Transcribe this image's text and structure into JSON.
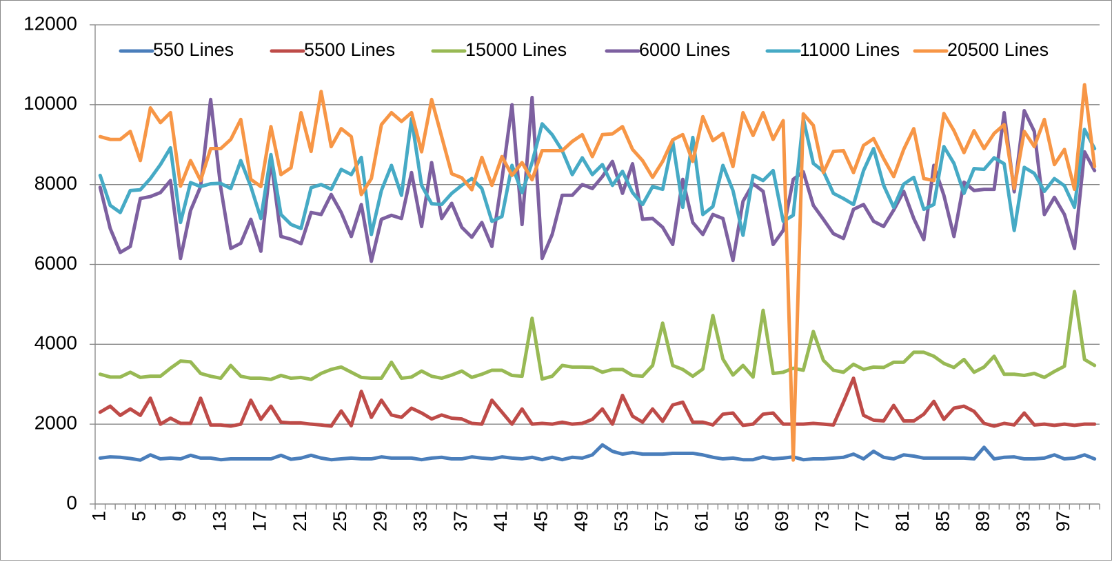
{
  "chart_data": {
    "type": "line",
    "categories": [
      1,
      null,
      null,
      null,
      5,
      null,
      null,
      null,
      9,
      null,
      null,
      null,
      13,
      null,
      null,
      null,
      17,
      null,
      null,
      null,
      21,
      null,
      null,
      null,
      25,
      null,
      null,
      null,
      29,
      null,
      null,
      null,
      33,
      null,
      null,
      null,
      37,
      null,
      null,
      null,
      41,
      null,
      null,
      null,
      45,
      null,
      null,
      null,
      49,
      null,
      null,
      null,
      53,
      null,
      null,
      null,
      57,
      null,
      null,
      null,
      61,
      null,
      null,
      null,
      65,
      null,
      null,
      null,
      69,
      null,
      null,
      null,
      73,
      null,
      null,
      null,
      77,
      null,
      null,
      null,
      81,
      null,
      null,
      null,
      85,
      null,
      null,
      null,
      89,
      null,
      null,
      null,
      93,
      null,
      null,
      null,
      97,
      null,
      null,
      null
    ],
    "ylim": [
      0,
      12000
    ],
    "yticks": [
      0,
      2000,
      4000,
      6000,
      8000,
      10000,
      12000
    ],
    "grid": true,
    "legend": "top",
    "series": [
      {
        "name": "550 Lines",
        "color": "#4a7ebb",
        "values": [
          1150,
          1180,
          1170,
          1140,
          1100,
          1230,
          1130,
          1150,
          1130,
          1220,
          1150,
          1150,
          1110,
          1130,
          1130,
          1130,
          1130,
          1130,
          1220,
          1120,
          1150,
          1220,
          1150,
          1110,
          1130,
          1150,
          1130,
          1130,
          1180,
          1150,
          1150,
          1150,
          1110,
          1150,
          1170,
          1130,
          1130,
          1180,
          1150,
          1130,
          1180,
          1150,
          1130,
          1170,
          1110,
          1170,
          1110,
          1170,
          1150,
          1230,
          1480,
          1320,
          1250,
          1290,
          1250,
          1250,
          1250,
          1270,
          1270,
          1270,
          1230,
          1170,
          1130,
          1150,
          1110,
          1110,
          1180,
          1130,
          1150,
          1180,
          1110,
          1130,
          1130,
          1150,
          1170,
          1250,
          1130,
          1320,
          1170,
          1130,
          1230,
          1200,
          1150,
          1150,
          1150,
          1150,
          1150,
          1130,
          1420,
          1130,
          1170,
          1180,
          1130,
          1130,
          1150,
          1230,
          1130,
          1150,
          1230,
          1130
        ]
      },
      {
        "name": "5500 Lines",
        "color": "#be4b48",
        "values": [
          2300,
          2450,
          2220,
          2380,
          2220,
          2650,
          2000,
          2150,
          2020,
          2020,
          2650,
          1980,
          1980,
          1950,
          2000,
          2600,
          2120,
          2450,
          2050,
          2030,
          2030,
          2000,
          1980,
          1950,
          2330,
          1960,
          2820,
          2170,
          2600,
          2230,
          2170,
          2400,
          2280,
          2130,
          2230,
          2150,
          2130,
          2020,
          2000,
          2600,
          2300,
          2000,
          2380,
          2000,
          2020,
          2000,
          2050,
          2000,
          2020,
          2120,
          2380,
          2000,
          2720,
          2200,
          2050,
          2380,
          2070,
          2480,
          2550,
          2050,
          2050,
          1980,
          2250,
          2280,
          1970,
          2000,
          2250,
          2280,
          2000,
          2000,
          2000,
          2020,
          2000,
          1980,
          2550,
          3150,
          2220,
          2100,
          2080,
          2470,
          2080,
          2080,
          2250,
          2570,
          2120,
          2400,
          2450,
          2320,
          2020,
          1950,
          2020,
          1980,
          2280,
          1980,
          2000,
          1970,
          2000,
          1970,
          2000,
          2000
        ]
      },
      {
        "name": "15000 Lines",
        "color": "#98b954",
        "values": [
          3250,
          3180,
          3180,
          3300,
          3170,
          3200,
          3200,
          3400,
          3580,
          3560,
          3270,
          3200,
          3150,
          3470,
          3200,
          3150,
          3150,
          3120,
          3220,
          3150,
          3170,
          3120,
          3270,
          3370,
          3430,
          3300,
          3170,
          3150,
          3150,
          3550,
          3150,
          3180,
          3330,
          3200,
          3150,
          3230,
          3330,
          3170,
          3250,
          3350,
          3350,
          3220,
          3200,
          4650,
          3130,
          3200,
          3470,
          3430,
          3430,
          3420,
          3300,
          3370,
          3370,
          3220,
          3200,
          3470,
          4530,
          3470,
          3370,
          3200,
          3380,
          4720,
          3630,
          3230,
          3470,
          3180,
          4850,
          3270,
          3300,
          3400,
          3350,
          4320,
          3600,
          3350,
          3300,
          3500,
          3370,
          3430,
          3420,
          3550,
          3550,
          3800,
          3800,
          3700,
          3520,
          3420,
          3620,
          3300,
          3430,
          3700,
          3250,
          3250,
          3220,
          3270,
          3170,
          3320,
          3450,
          5320,
          3620,
          3470
        ]
      },
      {
        "name": "6000 Lines",
        "color": "#7d60a0",
        "values": [
          7930,
          6900,
          6300,
          6450,
          7650,
          7700,
          7800,
          8100,
          6150,
          7350,
          7950,
          10130,
          7930,
          6400,
          6530,
          7130,
          6330,
          8630,
          6700,
          6630,
          6520,
          7300,
          7250,
          7750,
          7300,
          6700,
          7500,
          6080,
          7130,
          7230,
          7150,
          8300,
          6950,
          8550,
          7150,
          7530,
          6930,
          6680,
          7050,
          6450,
          8130,
          10000,
          7000,
          10180,
          6150,
          6750,
          7730,
          7730,
          8000,
          7900,
          8200,
          8580,
          7780,
          8520,
          7130,
          7150,
          6930,
          6500,
          8130,
          7050,
          6750,
          7250,
          7150,
          6100,
          7580,
          8020,
          7830,
          6500,
          6850,
          8130,
          8320,
          7480,
          7130,
          6770,
          6650,
          7380,
          7500,
          7080,
          6950,
          7360,
          7830,
          7150,
          6620,
          8480,
          7730,
          6700,
          8060,
          7850,
          7880,
          7880,
          9800,
          7820,
          9850,
          9330,
          7250,
          7680,
          7250,
          6400,
          8820,
          8350
        ]
      },
      {
        "name": "11000 Lines",
        "color": "#46aac5",
        "values": [
          8230,
          7480,
          7300,
          7850,
          7870,
          8150,
          8500,
          8920,
          7050,
          8050,
          7950,
          8020,
          8030,
          7900,
          8600,
          7950,
          7150,
          8750,
          7250,
          7000,
          6900,
          7920,
          8000,
          7880,
          8380,
          8250,
          8680,
          6750,
          7850,
          8480,
          7730,
          9650,
          7980,
          7520,
          7500,
          7780,
          7980,
          8150,
          7900,
          7080,
          7200,
          8480,
          7800,
          8550,
          9520,
          9250,
          8850,
          8250,
          8670,
          8250,
          8500,
          7980,
          8330,
          7800,
          7500,
          7950,
          7880,
          9080,
          7430,
          9180,
          7250,
          7450,
          8480,
          7850,
          6730,
          8230,
          8100,
          8350,
          7080,
          7230,
          9650,
          8530,
          8330,
          7780,
          7650,
          7500,
          8350,
          8900,
          7980,
          7430,
          8010,
          8180,
          7380,
          7500,
          8950,
          8530,
          7780,
          8400,
          8380,
          8670,
          8520,
          6850,
          8430,
          8280,
          7830,
          8150,
          7970,
          7430,
          9380,
          8900
        ]
      },
      {
        "name": "20500 Lines",
        "color": "#f79646",
        "values": [
          9200,
          9130,
          9130,
          9330,
          8600,
          9920,
          9550,
          9800,
          7960,
          8600,
          8100,
          8900,
          8900,
          9130,
          9630,
          8130,
          7950,
          9450,
          8250,
          8420,
          9800,
          8830,
          10330,
          8950,
          9400,
          9200,
          7750,
          8150,
          9500,
          9800,
          9580,
          9800,
          8820,
          10130,
          9200,
          8270,
          8170,
          7870,
          8680,
          7980,
          8700,
          8230,
          8550,
          8120,
          8850,
          8850,
          8850,
          9080,
          9250,
          8700,
          9250,
          9270,
          9450,
          8880,
          8600,
          8180,
          8580,
          9120,
          9250,
          8580,
          9700,
          9100,
          9280,
          8450,
          9800,
          9230,
          9800,
          9130,
          9600,
          1100,
          9770,
          9480,
          8300,
          8830,
          8850,
          8300,
          8980,
          9150,
          8650,
          8200,
          8880,
          9400,
          8150,
          8100,
          9780,
          9350,
          8800,
          9350,
          8900,
          9280,
          9500,
          7900,
          9330,
          8950,
          9630,
          8500,
          8880,
          7880,
          10500,
          8450
        ]
      }
    ]
  }
}
